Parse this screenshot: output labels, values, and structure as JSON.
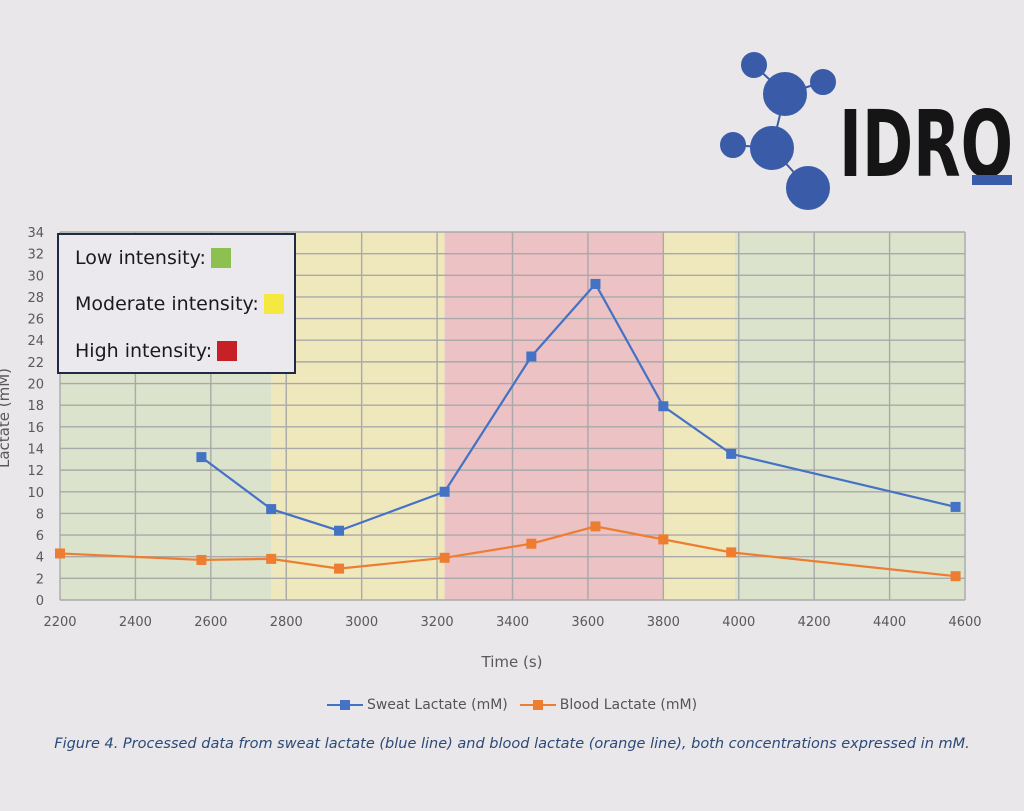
{
  "logo": {
    "text": "IDRO"
  },
  "intensity_legend": {
    "items": [
      {
        "label": "Low intensity:",
        "color": "#8cc152"
      },
      {
        "label": "Moderate intensity:",
        "color": "#f5e840"
      },
      {
        "label": "High intensity:",
        "color": "#c62127"
      }
    ]
  },
  "chart_data": {
    "type": "line",
    "xlabel": "Time (s)",
    "ylabel": "Lactate (mM)",
    "xlim": [
      2200,
      4600
    ],
    "ylim": [
      0,
      34
    ],
    "x_ticks": [
      2200,
      2400,
      2600,
      2800,
      3000,
      3200,
      3400,
      3600,
      3800,
      4000,
      4200,
      4400,
      4600
    ],
    "y_ticks": [
      0,
      2,
      4,
      6,
      8,
      10,
      12,
      14,
      16,
      18,
      20,
      22,
      24,
      26,
      28,
      30,
      32,
      34
    ],
    "grid": true,
    "intensity_zones": [
      {
        "level": "low",
        "x_start": 2200,
        "x_end": 2760,
        "color": "#dce3cd"
      },
      {
        "level": "moderate",
        "x_start": 2760,
        "x_end": 3220,
        "color": "#efe8bd"
      },
      {
        "level": "high",
        "x_start": 3220,
        "x_end": 3800,
        "color": "#ecc2c4"
      },
      {
        "level": "moderate",
        "x_start": 3800,
        "x_end": 3990,
        "color": "#efe8bd"
      },
      {
        "level": "low",
        "x_start": 3990,
        "x_end": 4600,
        "color": "#dce3cd"
      }
    ],
    "series": [
      {
        "name": "Sweat Lactate (mM)",
        "color": "#4472c4",
        "points": [
          {
            "x": 2575,
            "y": 13.2
          },
          {
            "x": 2760,
            "y": 8.4
          },
          {
            "x": 2940,
            "y": 6.4
          },
          {
            "x": 3220,
            "y": 10.0
          },
          {
            "x": 3450,
            "y": 22.5
          },
          {
            "x": 3620,
            "y": 29.2
          },
          {
            "x": 3800,
            "y": 17.9
          },
          {
            "x": 3980,
            "y": 13.5
          },
          {
            "x": 4575,
            "y": 8.6
          }
        ]
      },
      {
        "name": "Blood Lactate (mM)",
        "color": "#ed7d31",
        "points": [
          {
            "x": 2200,
            "y": 4.3
          },
          {
            "x": 2575,
            "y": 3.7
          },
          {
            "x": 2760,
            "y": 3.8
          },
          {
            "x": 2940,
            "y": 2.9
          },
          {
            "x": 3220,
            "y": 3.9
          },
          {
            "x": 3450,
            "y": 5.2
          },
          {
            "x": 3620,
            "y": 6.8
          },
          {
            "x": 3800,
            "y": 5.6
          },
          {
            "x": 3980,
            "y": 4.4
          },
          {
            "x": 4575,
            "y": 2.2
          }
        ]
      }
    ]
  },
  "caption": "Figure 4. Processed data from sweat lactate (blue line) and blood lactate (orange line), both concentrations expressed in mM."
}
